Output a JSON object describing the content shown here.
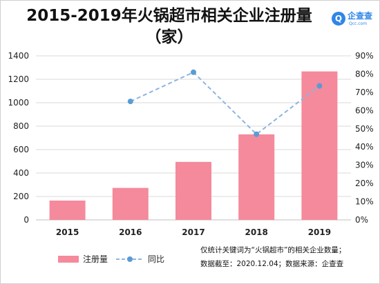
{
  "title_line1": "2015-2019年火锅超市相关企业注册量",
  "title_line2": "（家）",
  "logo": {
    "text": "企查查",
    "sub": "Qcc.com",
    "mark": "Q",
    "brand_color": "#2f86e8"
  },
  "note": {
    "line1": "仅统计关键词为“火锅超市”的相关企业数量；",
    "line2": "数据截至：2020.12.04；数据来源：企查查"
  },
  "colors": {
    "bar": "#f48a9b",
    "line": "#8db4e0",
    "marker": "#5b9bd5",
    "grid": "#d9d9d9"
  },
  "chart_data": {
    "type": "bar",
    "categories": [
      "2015",
      "2016",
      "2017",
      "2018",
      "2019"
    ],
    "series": [
      {
        "name": "注册量",
        "type": "bar",
        "axis": "left",
        "values": [
          165,
          273,
          495,
          730,
          1267
        ]
      },
      {
        "name": "同比",
        "type": "line",
        "axis": "right",
        "values": [
          null,
          0.65,
          0.81,
          0.47,
          0.735
        ]
      }
    ],
    "y_left": {
      "min": 0,
      "max": 1400,
      "ticks": [
        "0",
        "200",
        "400",
        "600",
        "800",
        "1000",
        "1200",
        "1400"
      ]
    },
    "y_right": {
      "min": 0,
      "max": 0.9,
      "ticks": [
        "0%",
        "10%",
        "20%",
        "30%",
        "40%",
        "50%",
        "60%",
        "70%",
        "80%",
        "90%"
      ]
    },
    "grid": true,
    "legend_position": "bottom-left"
  }
}
